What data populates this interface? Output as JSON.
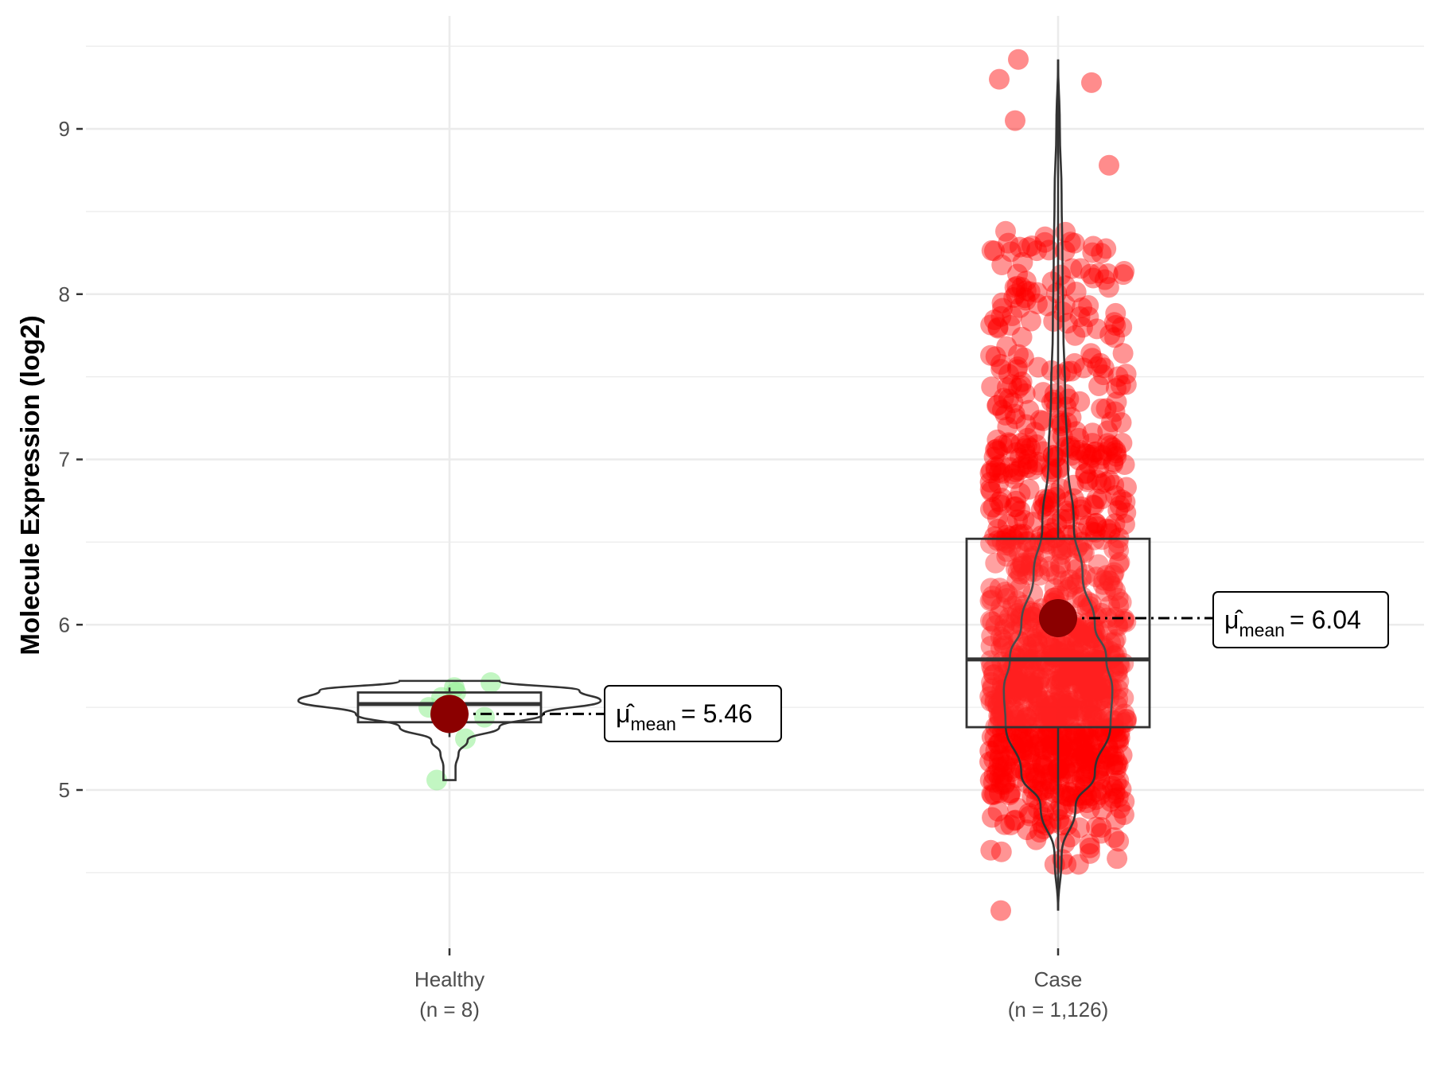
{
  "chart_data": {
    "type": "box-violin-jitter",
    "ylabel": "Molecule Expression (log2)",
    "ylim": [
      4.0,
      9.6
    ],
    "y_ticks": [
      5,
      6,
      7,
      8,
      9
    ],
    "y_tick_labels": [
      "5",
      "6",
      "7",
      "8",
      "9"
    ],
    "grid": true,
    "groups": [
      {
        "name": "Healthy",
        "n_label": "(n = 8)",
        "point_color": "#90ee90",
        "mean": 5.46,
        "box": {
          "q1": 5.41,
          "median": 5.52,
          "q3": 5.59,
          "whisker_low": 5.32,
          "whisker_high": 5.62
        },
        "violin": {
          "y": [
            5.06,
            5.14,
            5.22,
            5.3,
            5.38,
            5.46,
            5.54,
            5.6,
            5.66
          ],
          "width": [
            0.04,
            0.04,
            0.06,
            0.12,
            0.33,
            0.62,
            1.0,
            0.86,
            0.33
          ]
        },
        "points": [
          5.06,
          5.31,
          5.44,
          5.5,
          5.56,
          5.59,
          5.62,
          5.65
        ],
        "mean_label_prefix": "μ̂",
        "mean_label_sub": "mean",
        "mean_label_value": "= 5.46"
      },
      {
        "name": "Case",
        "n_label": "(n = 1,126)",
        "point_color": "#ff0000",
        "mean": 6.04,
        "box": {
          "q1": 5.38,
          "median": 5.79,
          "q3": 6.52,
          "whisker_low": 4.27,
          "whisker_high": 9.42
        },
        "violin": {
          "y": [
            4.27,
            4.6,
            4.9,
            5.1,
            5.4,
            5.6,
            5.8,
            6.0,
            6.3,
            6.6,
            7.0,
            7.4,
            7.8,
            8.2,
            8.6,
            9.0,
            9.42
          ],
          "width": [
            0.0,
            0.04,
            0.2,
            0.42,
            0.6,
            0.62,
            0.55,
            0.42,
            0.28,
            0.18,
            0.11,
            0.08,
            0.06,
            0.05,
            0.04,
            0.02,
            0.0
          ]
        },
        "mean_label_prefix": "μ̂",
        "mean_label_sub": "mean",
        "mean_label_value": "= 6.04"
      }
    ]
  }
}
